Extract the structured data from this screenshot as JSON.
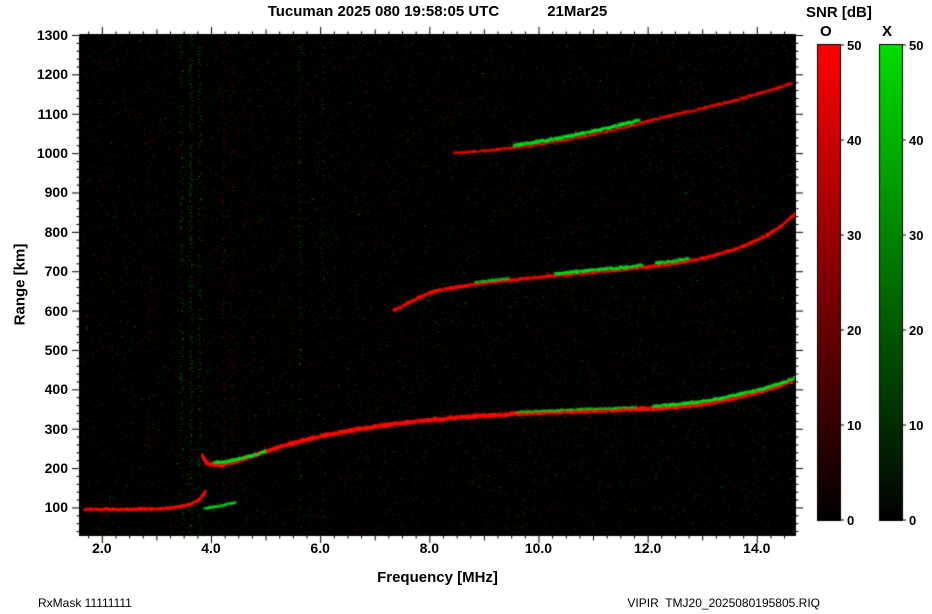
{
  "title": {
    "left": "Tucuman 2025 080 19:58:05 UTC",
    "right": "21Mar25"
  },
  "footer": {
    "left": "RxMask 11111111",
    "right": "VIPIR  TMJ20_2025080195805.RIQ"
  },
  "chart_data": {
    "type": "heatmap",
    "title": "Tucuman 2025 080 19:58:05 UTC  21Mar25",
    "xlabel": "Frequency [MHz]",
    "ylabel": "Range [km]",
    "xlim": [
      1.6,
      14.7
    ],
    "ylim": [
      30,
      1300
    ],
    "x_ticks": [
      2,
      4,
      6,
      8,
      10,
      12,
      14
    ],
    "x_tick_labels": [
      "2.0",
      "4.0",
      "6.0",
      "8.0",
      "10.0",
      "12.0",
      "14.0"
    ],
    "x_minor_step": 0.25,
    "y_ticks": [
      100,
      200,
      300,
      400,
      500,
      600,
      700,
      800,
      900,
      1000,
      1100,
      1200,
      1300
    ],
    "y_tick_labels": [
      "100",
      "200",
      "300",
      "400",
      "500",
      "600",
      "700",
      "800",
      "900",
      "1000",
      "1100",
      "1200",
      "1300"
    ],
    "y_minor_step": 20,
    "background_color": "#000000",
    "grid": false,
    "snr_scale": {
      "title": "SNR [dB]",
      "min": 0,
      "max": 50,
      "ticks": [
        0,
        10,
        20,
        30,
        40,
        50
      ],
      "tick_labels": [
        "0",
        "10",
        "20",
        "30",
        "40",
        "50"
      ],
      "modes": [
        {
          "label": "O",
          "color": "#ff0000"
        },
        {
          "label": "X",
          "color": "#00dd00"
        }
      ]
    },
    "series": [
      {
        "name": "E layer 1st hop O-mode",
        "mode": "O",
        "width": 3,
        "alpha": 0.95,
        "points": [
          [
            1.68,
            95
          ],
          [
            2.1,
            95
          ],
          [
            2.5,
            95
          ],
          [
            2.9,
            96
          ],
          [
            3.2,
            98
          ],
          [
            3.45,
            102
          ],
          [
            3.62,
            108
          ],
          [
            3.78,
            119
          ],
          [
            3.9,
            140
          ]
        ]
      },
      {
        "name": "E layer 1st hop X-mode",
        "mode": "X",
        "width": 2.5,
        "alpha": 0.8,
        "points": [
          [
            3.88,
            97
          ],
          [
            4.05,
            101
          ],
          [
            4.25,
            106
          ],
          [
            4.45,
            113
          ]
        ]
      },
      {
        "name": "F layer 1st hop O-mode",
        "mode": "O",
        "width": 4,
        "alpha": 1,
        "points": [
          [
            3.84,
            230
          ],
          [
            3.92,
            213
          ],
          [
            4.05,
            207
          ],
          [
            4.2,
            208
          ],
          [
            4.4,
            215
          ],
          [
            4.65,
            226
          ],
          [
            4.9,
            237
          ],
          [
            5.2,
            251
          ],
          [
            5.5,
            263
          ],
          [
            5.8,
            274
          ],
          [
            6.1,
            283
          ],
          [
            6.4,
            291
          ],
          [
            6.7,
            299
          ],
          [
            7.0,
            305
          ],
          [
            7.3,
            311
          ],
          [
            7.6,
            316
          ],
          [
            7.9,
            320
          ],
          [
            8.2,
            324
          ],
          [
            8.6,
            329
          ],
          [
            9.0,
            333
          ],
          [
            9.4,
            336
          ],
          [
            9.8,
            339
          ],
          [
            10.2,
            341
          ],
          [
            10.6,
            343
          ],
          [
            11.0,
            345
          ],
          [
            11.4,
            347
          ],
          [
            11.8,
            350
          ],
          [
            12.2,
            352
          ],
          [
            12.6,
            356
          ],
          [
            13.0,
            362
          ],
          [
            13.4,
            372
          ],
          [
            13.8,
            385
          ],
          [
            14.1,
            396
          ],
          [
            14.4,
            409
          ],
          [
            14.65,
            422
          ]
        ]
      },
      {
        "name": "F layer 1st hop X-mode low",
        "mode": "X",
        "width": 3,
        "alpha": 0.85,
        "points": [
          [
            4.05,
            214
          ],
          [
            4.25,
            216
          ],
          [
            4.5,
            223
          ],
          [
            4.75,
            232
          ],
          [
            5.0,
            241
          ]
        ]
      },
      {
        "name": "F layer 1st hop X-mode mid",
        "mode": "X",
        "width": 2.5,
        "alpha": 0.55,
        "points": [
          [
            9.6,
            342
          ],
          [
            10.0,
            345
          ],
          [
            10.4,
            347
          ],
          [
            10.9,
            350
          ],
          [
            11.4,
            352
          ],
          [
            11.8,
            355
          ]
        ]
      },
      {
        "name": "F layer 1st hop X-mode high",
        "mode": "X",
        "width": 3,
        "alpha": 0.9,
        "points": [
          [
            12.1,
            357
          ],
          [
            12.5,
            361
          ],
          [
            12.9,
            367
          ],
          [
            13.3,
            376
          ],
          [
            13.7,
            388
          ],
          [
            14.1,
            401
          ],
          [
            14.45,
            415
          ],
          [
            14.7,
            430
          ]
        ]
      },
      {
        "name": "F layer 2nd hop O-mode",
        "mode": "O",
        "width": 3.2,
        "alpha": 0.85,
        "points": [
          [
            7.35,
            600
          ],
          [
            7.6,
            618
          ],
          [
            7.85,
            636
          ],
          [
            8.1,
            649
          ],
          [
            8.4,
            657
          ],
          [
            8.7,
            664
          ],
          [
            9.0,
            670
          ],
          [
            9.4,
            676
          ],
          [
            9.8,
            682
          ],
          [
            10.2,
            687
          ],
          [
            10.6,
            692
          ],
          [
            11.0,
            697
          ],
          [
            11.4,
            702
          ],
          [
            11.8,
            708
          ],
          [
            12.2,
            714
          ],
          [
            12.6,
            722
          ],
          [
            13.0,
            732
          ],
          [
            13.3,
            743
          ],
          [
            13.6,
            756
          ],
          [
            13.9,
            772
          ],
          [
            14.2,
            792
          ],
          [
            14.45,
            815
          ],
          [
            14.7,
            845
          ]
        ]
      },
      {
        "name": "F layer 2nd hop X-mode a",
        "mode": "X",
        "width": 2.5,
        "alpha": 0.65,
        "points": [
          [
            8.85,
            672
          ],
          [
            9.15,
            677
          ],
          [
            9.45,
            681
          ]
        ]
      },
      {
        "name": "F layer 2nd hop X-mode b",
        "mode": "X",
        "width": 3,
        "alpha": 0.9,
        "points": [
          [
            10.3,
            694
          ],
          [
            10.7,
            699
          ],
          [
            11.1,
            704
          ],
          [
            11.5,
            709
          ],
          [
            11.9,
            715
          ]
        ]
      },
      {
        "name": "F layer 2nd hop X-mode c",
        "mode": "X",
        "width": 2.8,
        "alpha": 0.8,
        "points": [
          [
            12.15,
            720
          ],
          [
            12.45,
            725
          ],
          [
            12.75,
            731
          ]
        ]
      },
      {
        "name": "F layer 3rd echo O-mode",
        "mode": "O",
        "width": 2.8,
        "alpha": 0.7,
        "points": [
          [
            8.45,
            1000
          ],
          [
            8.85,
            1004
          ],
          [
            9.25,
            1009
          ],
          [
            9.65,
            1015
          ],
          [
            10.05,
            1023
          ],
          [
            10.45,
            1032
          ],
          [
            10.85,
            1043
          ],
          [
            11.25,
            1055
          ],
          [
            11.65,
            1068
          ],
          [
            12.0,
            1081
          ],
          [
            12.35,
            1093
          ],
          [
            12.7,
            1104
          ],
          [
            13.05,
            1115
          ],
          [
            13.4,
            1127
          ],
          [
            13.75,
            1140
          ],
          [
            14.1,
            1154
          ],
          [
            14.4,
            1166
          ],
          [
            14.65,
            1178
          ]
        ]
      },
      {
        "name": "F layer 3rd echo X-mode",
        "mode": "X",
        "width": 3.2,
        "alpha": 0.95,
        "points": [
          [
            9.55,
            1020
          ],
          [
            9.95,
            1028
          ],
          [
            10.35,
            1037
          ],
          [
            10.75,
            1048
          ],
          [
            11.15,
            1060
          ],
          [
            11.55,
            1073
          ],
          [
            11.85,
            1084
          ]
        ]
      }
    ],
    "rfi_lines": [
      {
        "frequency": 2.85,
        "mode": "O",
        "density": 0.12
      },
      {
        "frequency": 3.45,
        "mode": "X",
        "density": 0.3
      },
      {
        "frequency": 3.62,
        "mode": "X",
        "density": 0.45
      },
      {
        "frequency": 3.78,
        "mode": "X",
        "density": 0.3
      },
      {
        "frequency": 4.22,
        "mode": "O",
        "density": 0.28
      },
      {
        "frequency": 4.38,
        "mode": "O",
        "density": 0.18
      },
      {
        "frequency": 5.62,
        "mode": "X",
        "density": 0.12
      },
      {
        "frequency": 6.05,
        "mode": "X",
        "density": 0.08
      }
    ],
    "noise": {
      "seed": 20250321,
      "count": 26000,
      "green_fraction": 0.42
    }
  }
}
